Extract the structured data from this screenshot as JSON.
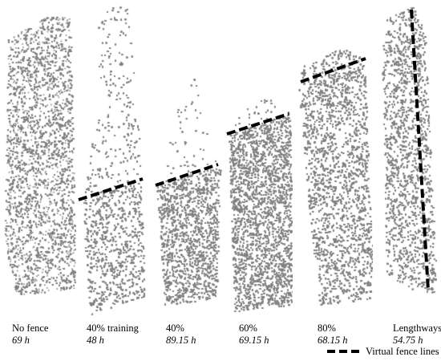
{
  "figure": {
    "panels": [
      {
        "label": "No fence",
        "hours": "69 h",
        "fence": false
      },
      {
        "label": "40% training",
        "hours": "48 h",
        "fence": true
      },
      {
        "label": "40%",
        "hours": "89.15 h",
        "fence": true
      },
      {
        "label": "60%",
        "hours": "69.15 h",
        "fence": true
      },
      {
        "label": "80%",
        "hours": "68.15 h",
        "fence": true
      },
      {
        "label": "Lengthways",
        "hours": "54.75 h",
        "fence": true
      }
    ],
    "legend": {
      "label": "Virtual fence lines"
    },
    "colors": {
      "points": "#808080",
      "fence": "#000000",
      "background": "#ffffff"
    }
  }
}
